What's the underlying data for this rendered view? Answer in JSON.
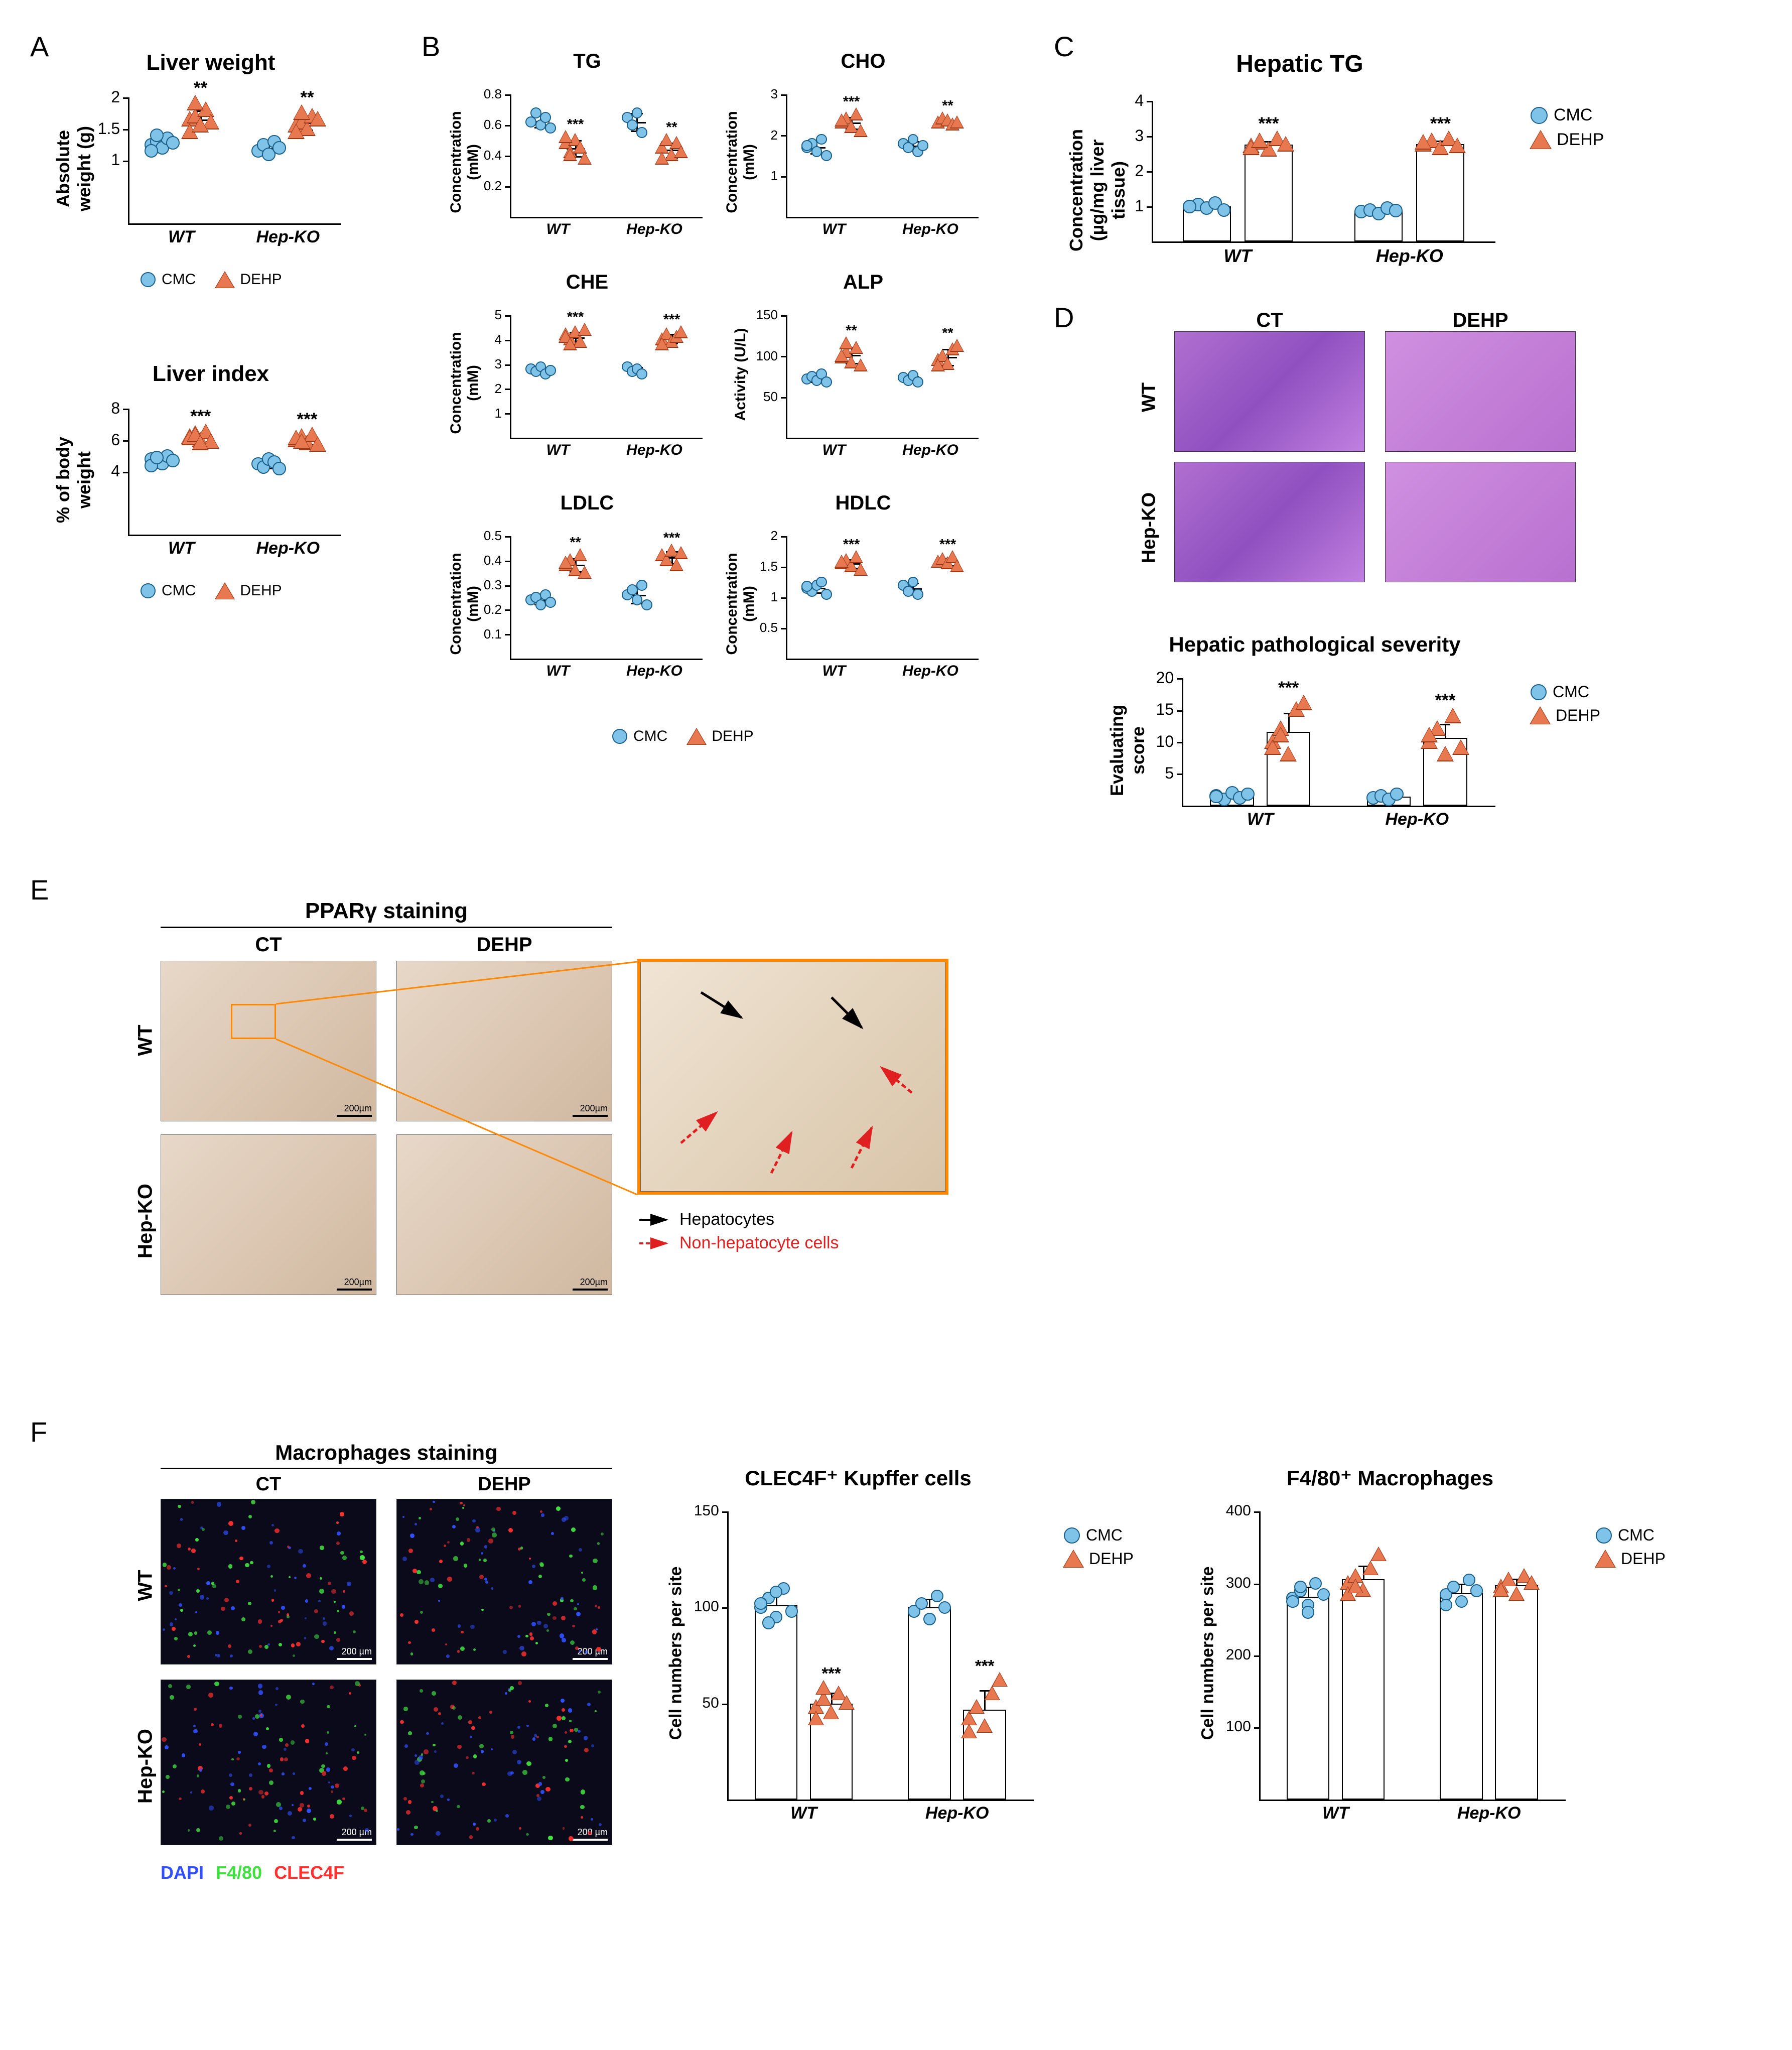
{
  "colors": {
    "cmc_fill": "#7fc4e8",
    "cmc_stroke": "#1a5f8a",
    "dehp_fill": "#e87850",
    "dehp_stroke": "#9a3818",
    "axis": "#000000",
    "bg": "#ffffff",
    "histology": "#a855d8",
    "ihc": "#d8c0a8",
    "fluor_bg": "#0a0a1a",
    "dapi": "#3050ff",
    "f480": "#40e040",
    "clec4f": "#ff3030"
  },
  "legend": {
    "cmc": "CMC",
    "dehp": "DEHP"
  },
  "groups": [
    "WT",
    "Hep-KO"
  ],
  "panelA": {
    "label": "A",
    "charts": [
      {
        "title": "Liver weight",
        "ylabel": "Absolute weight (g)",
        "ylim": [
          0,
          2.0
        ],
        "yticks": [
          1.0,
          1.5,
          2.0
        ],
        "title_fontsize": 44,
        "axis_fontsize": 36,
        "tick_fontsize": 32,
        "data": {
          "WT": {
            "cmc": [
              1.25,
              1.3,
              1.2,
              1.35,
              1.28,
              1.15,
              1.4
            ],
            "dehp": [
              1.65,
              1.7,
              1.55,
              1.8,
              1.6,
              1.45,
              1.9,
              1.55
            ],
            "sig": "**"
          },
          "Hep-KO": {
            "cmc": [
              1.15,
              1.25,
              1.1,
              1.3,
              1.2
            ],
            "dehp": [
              1.55,
              1.6,
              1.5,
              1.7,
              1.65,
              1.45,
              1.75
            ],
            "sig": "**"
          }
        }
      },
      {
        "title": "Liver index",
        "ylabel": "% of body weight",
        "ylim": [
          0,
          8
        ],
        "yticks": [
          4,
          6,
          8
        ],
        "title_fontsize": 44,
        "axis_fontsize": 36,
        "tick_fontsize": 32,
        "data": {
          "WT": {
            "cmc": [
              4.8,
              4.6,
              4.5,
              5.0,
              4.7,
              4.4,
              4.9
            ],
            "dehp": [
              6.2,
              6.4,
              6.0,
              6.5,
              5.9,
              6.1,
              6.3,
              5.8
            ],
            "sig": "***"
          },
          "Hep-KO": {
            "cmc": [
              4.5,
              4.3,
              4.8,
              4.6,
              4.2
            ],
            "dehp": [
              6.0,
              6.2,
              5.8,
              6.3,
              5.7,
              6.1,
              5.9
            ],
            "sig": "***"
          }
        }
      }
    ]
  },
  "panelB": {
    "label": "B",
    "charts": [
      {
        "title": "TG",
        "ylabel": "Concentration (mM)",
        "ylim": [
          0,
          0.8
        ],
        "yticks": [
          0.2,
          0.4,
          0.6,
          0.8
        ],
        "data": {
          "WT": {
            "cmc": [
              0.62,
              0.68,
              0.6,
              0.65,
              0.58
            ],
            "dehp": [
              0.48,
              0.42,
              0.5,
              0.45,
              0.38,
              0.52,
              0.4
            ],
            "sig": "***"
          },
          "Hep-KO": {
            "cmc": [
              0.65,
              0.6,
              0.68,
              0.55
            ],
            "dehp": [
              0.45,
              0.5,
              0.4,
              0.48,
              0.42,
              0.38
            ],
            "sig": "**"
          }
        }
      },
      {
        "title": "CHO",
        "ylabel": "Concentration (mM)",
        "ylim": [
          0,
          3
        ],
        "yticks": [
          1,
          2,
          3
        ],
        "data": {
          "WT": {
            "cmc": [
              1.7,
              1.8,
              1.6,
              1.9,
              1.5,
              1.75
            ],
            "dehp": [
              2.3,
              2.4,
              2.2,
              2.5,
              2.1,
              2.35
            ],
            "sig": "***"
          },
          "Hep-KO": {
            "cmc": [
              1.8,
              1.7,
              1.9,
              1.6,
              1.75
            ],
            "dehp": [
              2.3,
              2.4,
              2.35,
              2.25,
              2.3
            ],
            "sig": "**"
          }
        }
      },
      {
        "title": "CHE",
        "ylabel": "Concentration (mM)",
        "ylim": [
          0,
          5
        ],
        "yticks": [
          1,
          2,
          3,
          4,
          5
        ],
        "data": {
          "WT": {
            "cmc": [
              2.8,
              2.7,
              2.9,
              2.6,
              2.75
            ],
            "dehp": [
              4.2,
              4.0,
              4.3,
              3.9,
              4.4,
              4.1,
              3.8
            ],
            "sig": "***"
          },
          "Hep-KO": {
            "cmc": [
              2.9,
              2.7,
              2.8,
              2.6
            ],
            "dehp": [
              4.0,
              4.2,
              3.9,
              4.1,
              4.3,
              3.8
            ],
            "sig": "***"
          }
        }
      },
      {
        "title": "ALP",
        "ylabel": "Activity (U/L)",
        "ylim": [
          0,
          150
        ],
        "yticks": [
          50,
          100,
          150
        ],
        "data": {
          "WT": {
            "cmc": [
              72,
              75,
              70,
              78,
              68
            ],
            "dehp": [
              98,
              105,
              92,
              110,
              88,
              100,
              115
            ],
            "sig": "**"
          },
          "Hep-KO": {
            "cmc": [
              74,
              70,
              76,
              68
            ],
            "dehp": [
              95,
              100,
              90,
              108,
              112,
              88
            ],
            "sig": "**"
          }
        }
      },
      {
        "title": "LDLC",
        "ylabel": "Concentration (mM)",
        "ylim": [
          0,
          0.5
        ],
        "yticks": [
          0.1,
          0.2,
          0.3,
          0.4,
          0.5
        ],
        "data": {
          "WT": {
            "cmc": [
              0.24,
              0.25,
              0.22,
              0.26,
              0.23
            ],
            "dehp": [
              0.38,
              0.4,
              0.36,
              0.42,
              0.35,
              0.39
            ],
            "sig": "**"
          },
          "Hep-KO": {
            "cmc": [
              0.26,
              0.28,
              0.24,
              0.3,
              0.22
            ],
            "dehp": [
              0.42,
              0.4,
              0.44,
              0.38,
              0.43
            ],
            "sig": "***"
          }
        }
      },
      {
        "title": "HDLC",
        "ylabel": "Concentration (mM)",
        "ylim": [
          0,
          2.0
        ],
        "yticks": [
          0.5,
          1.0,
          1.5,
          2.0
        ],
        "data": {
          "WT": {
            "cmc": [
              1.15,
              1.1,
              1.2,
              1.25,
              1.05,
              1.18
            ],
            "dehp": [
              1.55,
              1.6,
              1.5,
              1.65,
              1.45,
              1.58
            ],
            "sig": "***"
          },
          "Hep-KO": {
            "cmc": [
              1.2,
              1.1,
              1.25,
              1.05
            ],
            "dehp": [
              1.58,
              1.62,
              1.55,
              1.65,
              1.5
            ],
            "sig": "***"
          }
        }
      }
    ],
    "title_fontsize": 40,
    "axis_fontsize": 30,
    "tick_fontsize": 26
  },
  "panelC": {
    "label": "C",
    "title": "Hepatic TG",
    "ylabel": "Concentration\n(µg/mg liver tissue)",
    "ylim": [
      0,
      4
    ],
    "yticks": [
      1,
      2,
      3,
      4
    ],
    "title_fontsize": 48,
    "axis_fontsize": 36,
    "tick_fontsize": 32,
    "data": {
      "WT": {
        "cmc": [
          1.0,
          1.05,
          0.95,
          1.1,
          0.9,
          1.0
        ],
        "dehp": [
          2.7,
          2.8,
          2.6,
          2.9,
          2.75,
          2.65,
          2.85
        ],
        "sig": "***"
      },
      "Hep-KO": {
        "cmc": [
          0.85,
          0.9,
          0.8,
          0.95,
          0.88
        ],
        "dehp": [
          2.75,
          2.85,
          2.65,
          2.9,
          2.7,
          2.8
        ],
        "sig": "***"
      }
    }
  },
  "panelD": {
    "label": "D",
    "image_cols": [
      "CT",
      "DEHP"
    ],
    "image_rows": [
      "WT",
      "Hep-KO"
    ],
    "chart": {
      "title": "Hepatic pathological severity",
      "ylabel": "Evaluating score",
      "ylim": [
        0,
        20
      ],
      "yticks": [
        5,
        10,
        15,
        20
      ],
      "title_fontsize": 42,
      "axis_fontsize": 36,
      "tick_fontsize": 32,
      "data": {
        "WT": {
          "cmc": [
            1.5,
            1.0,
            2.0,
            1.2,
            1.8,
            1.4
          ],
          "dehp": [
            10,
            12,
            8,
            15,
            16,
            9,
            11
          ],
          "sig": "***"
        },
        "Hep-KO": {
          "cmc": [
            1.2,
            1.5,
            1.0,
            1.8
          ],
          "dehp": [
            10,
            12,
            8,
            14,
            9,
            11
          ],
          "sig": "***"
        }
      }
    }
  },
  "panelE": {
    "label": "E",
    "title": "PPARγ staining",
    "image_cols": [
      "CT",
      "DEHP"
    ],
    "image_rows": [
      "WT",
      "Hep-KO"
    ],
    "scale_text": "200µm",
    "arrows": {
      "hepatocytes": "Hepatocytes",
      "nonhep": "Non-hepatocyte cells"
    }
  },
  "panelF": {
    "label": "F",
    "title": "Macrophages staining",
    "image_cols": [
      "CT",
      "DEHP"
    ],
    "image_rows": [
      "WT",
      "Hep-KO"
    ],
    "scale_text": "200 µm",
    "fluor_legend": {
      "dapi": "DAPI",
      "f480": "F4/80",
      "clec4f": "CLEC4F"
    },
    "charts": [
      {
        "title": "CLEC4F⁺ Kupffer cells",
        "ylabel": "Cell numbers per site",
        "ylim": [
          0,
          150
        ],
        "yticks": [
          50,
          100,
          150
        ],
        "data": {
          "WT": {
            "cmc": [
              100,
              105,
              95,
              110,
              98,
              102,
              92,
              108
            ],
            "dehp": [
              48,
              52,
              45,
              55,
              50,
              42,
              58
            ],
            "sig": "***"
          },
          "Hep-KO": {
            "cmc": [
              98,
              102,
              94,
              106,
              100
            ],
            "dehp": [
              42,
              48,
              38,
              55,
              62,
              35
            ],
            "sig": "***"
          }
        }
      },
      {
        "title": "F4/80⁺ Macrophages",
        "ylabel": "Cell numbers per site",
        "ylim": [
          0,
          400
        ],
        "yticks": [
          100,
          200,
          300,
          400
        ],
        "data": {
          "WT": {
            "cmc": [
              280,
              290,
              270,
              300,
              285,
              275,
              295,
              260
            ],
            "dehp": [
              300,
              310,
              290,
              320,
              340,
              285,
              295
            ],
            "sig": ""
          },
          "Hep-KO": {
            "cmc": [
              285,
              295,
              275,
              305,
              290,
              270
            ],
            "dehp": [
              295,
              305,
              285,
              310,
              300,
              290
            ],
            "sig": ""
          }
        }
      }
    ],
    "title_fontsize": 42,
    "axis_fontsize": 34,
    "tick_fontsize": 30
  }
}
